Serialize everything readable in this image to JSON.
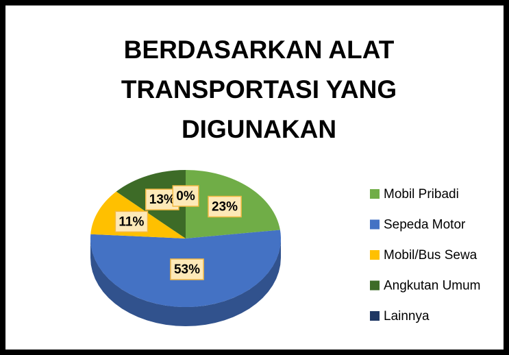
{
  "chart_data": {
    "type": "pie",
    "title": [
      "BERDASARKAN ALAT",
      "TRANSPORTASI YANG",
      "DIGUNAKAN"
    ],
    "categories": [
      "Mobil Pribadi",
      "Sepeda Motor",
      "Mobil/Bus Sewa",
      "Angkutan Umum",
      "Lainnya"
    ],
    "values": [
      23,
      53,
      11,
      13,
      0
    ],
    "value_labels": [
      "23%",
      "53%",
      "11%",
      "13%",
      "0%"
    ],
    "colors": [
      "#70ad47",
      "#4472c4",
      "#ffc000",
      "#3d6b27",
      "#203864"
    ],
    "legend": "right"
  }
}
